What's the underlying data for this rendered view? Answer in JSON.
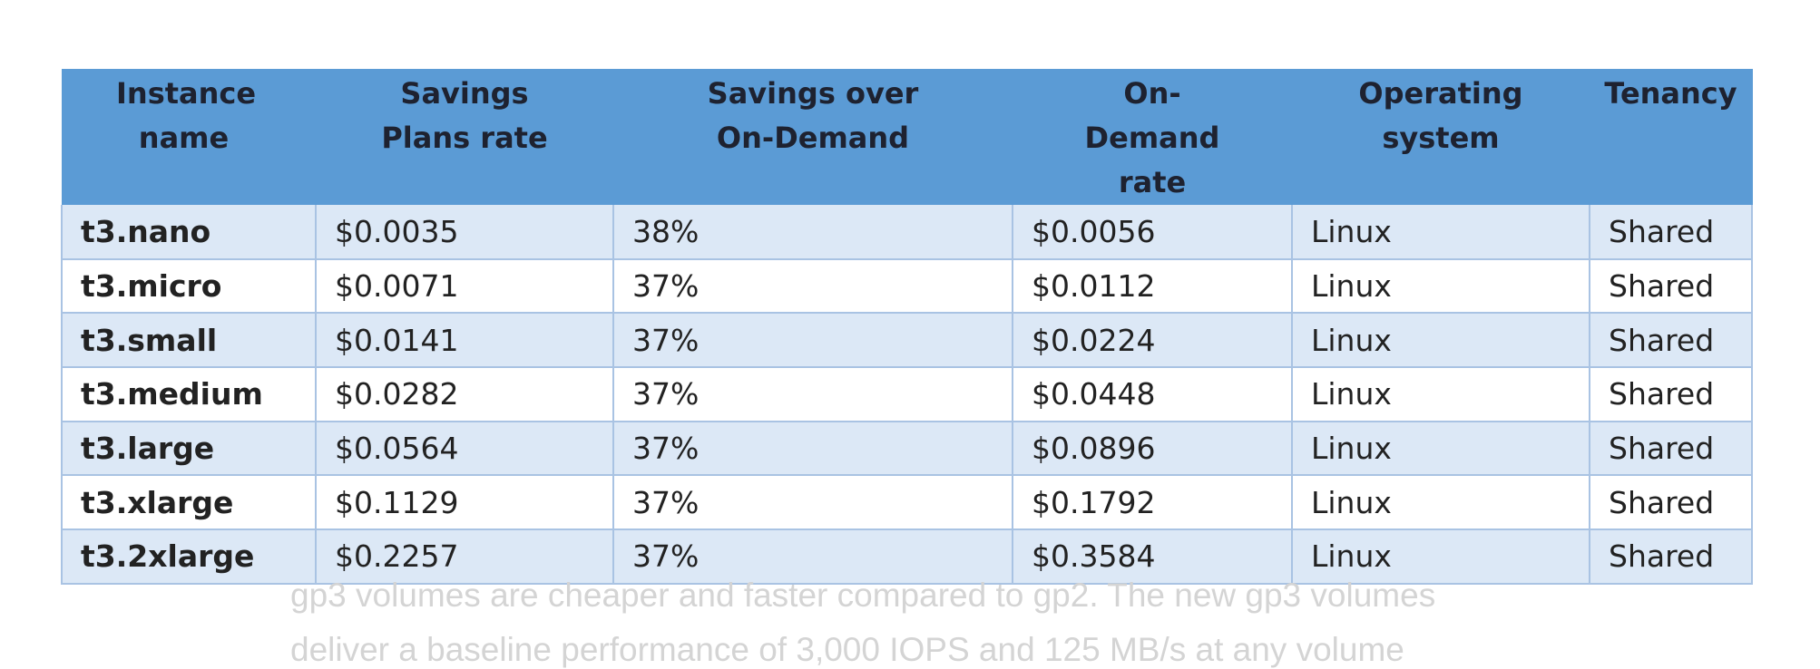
{
  "table": {
    "headers": [
      "Instance name",
      "Savings Plans rate",
      "Savings over On-Demand",
      "On-Demand rate",
      "Operating system",
      "Tenancy"
    ],
    "rows": [
      [
        "t3.nano",
        "$0.0035",
        "38%",
        "$0.0056",
        "Linux",
        "Shared"
      ],
      [
        "t3.micro",
        "$0.0071",
        "37%",
        "$0.0112",
        "Linux",
        "Shared"
      ],
      [
        "t3.small",
        "$0.0141",
        "37%",
        "$0.0224",
        "Linux",
        "Shared"
      ],
      [
        "t3.medium",
        "$0.0282",
        "37%",
        "$0.0448",
        "Linux",
        "Shared"
      ],
      [
        "t3.large",
        "$0.0564",
        "37%",
        "$0.0896",
        "Linux",
        "Shared"
      ],
      [
        "t3.xlarge",
        "$0.1129",
        "37%",
        "$0.1792",
        "Linux",
        "Shared"
      ],
      [
        "t3.2xlarge",
        "$0.2257",
        "37%",
        "$0.3584",
        "Linux",
        "Shared"
      ]
    ]
  },
  "body_text": {
    "line1": "gp3 volumes are cheaper and faster compared to gp2. The new gp3 volumes",
    "line2": "deliver a baseline performance of 3,000 IOPS and 125 MB/s at any volume"
  },
  "colors": {
    "header_bg": "#5b9bd5",
    "band_row_bg": "#dce8f6",
    "border": "#a9c3e3"
  }
}
